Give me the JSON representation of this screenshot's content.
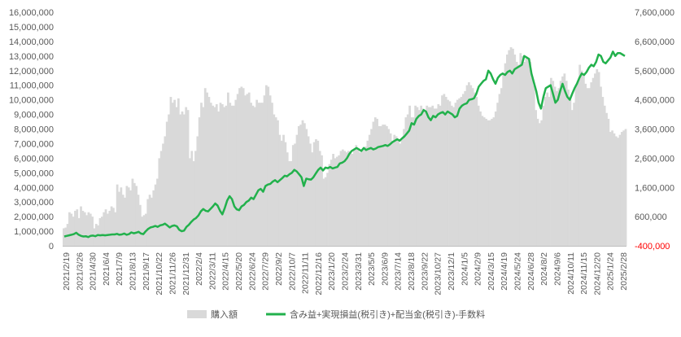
{
  "chart_data": {
    "type": "bar+line",
    "title": "",
    "xlabel": "",
    "ylabel": "",
    "legend_position": "bottom",
    "grid": false,
    "x_tick_labels": [
      "2021/2/19",
      "2021/3/26",
      "2021/4/30",
      "2021/6/4",
      "2021/7/9",
      "2021/8/13",
      "2021/9/17",
      "2021/10/22",
      "2021/11/26",
      "2021/12/31",
      "2022/2/4",
      "2022/3/11",
      "2022/4/15",
      "2022/5/20",
      "2022/6/24",
      "2022/7/29",
      "2022/9/2",
      "2022/10/7",
      "2022/11/11",
      "2022/12/16",
      "2023/1/20",
      "2023/2/24",
      "2023/3/31",
      "2023/5/5",
      "2023/6/9",
      "2023/7/14",
      "2023/8/18",
      "2023/9/22",
      "2023/10/27",
      "2023/12/1",
      "2024/1/5",
      "2024/2/9",
      "2024/3/15",
      "2024/4/19",
      "2024/5/24",
      "2024/6/28",
      "2024/8/2",
      "2024/9/6",
      "2024/10/11",
      "2024/11/15",
      "2024/12/20",
      "2025/1/24",
      "2025/2/28"
    ],
    "y_left": {
      "ylim": [
        0,
        16000000
      ],
      "ticks": [
        "0",
        "1,000,000",
        "2,000,000",
        "3,000,000",
        "4,000,000",
        "5,000,000",
        "6,000,000",
        "7,000,000",
        "8,000,000",
        "9,000,000",
        "10,000,000",
        "11,000,000",
        "12,000,000",
        "13,000,000",
        "14,000,000",
        "15,000,000",
        "16,000,000"
      ]
    },
    "y_right": {
      "ylim": [
        -400000,
        7600000
      ],
      "ticks": [
        "-400,000",
        "600,000",
        "1,600,000",
        "2,600,000",
        "3,600,000",
        "4,600,000",
        "5,600,000",
        "6,600,000",
        "7,600,000"
      ],
      "negative_color": "#ff0000"
    },
    "series": [
      {
        "name": "購入額",
        "type": "bar",
        "axis": "left",
        "color": "#d9d9d9",
        "values": [
          1200000,
          1250000,
          1500000,
          2300000,
          2200000,
          2000000,
          2400000,
          2500000,
          1900000,
          2700000,
          2400000,
          2300000,
          2100000,
          2300000,
          2200000,
          2000000,
          1200000,
          1500000,
          1400000,
          1900000,
          2000000,
          2300000,
          2500000,
          2200000,
          2400000,
          2700000,
          2600000,
          2300000,
          4200000,
          3700000,
          4000000,
          3500000,
          3300000,
          4100000,
          4000000,
          3800000,
          4600000,
          4300000,
          4100000,
          3500000,
          2800000,
          2000000,
          2100000,
          2200000,
          3200000,
          3500000,
          3300000,
          3800000,
          4200000,
          4600000,
          6000000,
          6500000,
          7000000,
          7500000,
          8500000,
          9000000,
          10200000,
          9800000,
          10000000,
          9500000,
          10100000,
          9000000,
          9200000,
          9000000,
          9500000,
          9300000,
          6000000,
          6500000,
          5800000,
          6500000,
          7500000,
          8800000,
          9800000,
          9500000,
          10800000,
          10500000,
          10200000,
          9800000,
          9600000,
          9500000,
          9700000,
          9200000,
          9800000,
          9700000,
          9500000,
          9600000,
          10500000,
          9800000,
          9600000,
          9600000,
          10000000,
          10400000,
          10800000,
          10900000,
          10800000,
          10300000,
          10400000,
          10500000,
          9800000,
          9600000,
          9500000,
          10000000,
          9800000,
          9800000,
          9800000,
          10300000,
          11000000,
          10900000,
          10300000,
          9800000,
          9000000,
          8800000,
          8600000,
          7600000,
          7200000,
          7600000,
          7100000,
          6400000,
          5800000,
          5800000,
          6900000,
          7000000,
          7600000,
          8200000,
          8300000,
          8600000,
          8400000,
          8000000,
          7500000,
          7000000,
          6400000,
          7100000,
          7300000,
          7200000,
          6500000,
          6200000,
          4600000,
          4700000,
          5000000,
          5600000,
          5900000,
          6300000,
          6000000,
          6100000,
          6200000,
          6500000,
          6600000,
          6500000,
          6400000,
          6500000,
          6400000,
          6300000,
          6600000,
          6900000,
          6600000,
          6400000,
          6500000,
          6600000,
          6800000,
          7200000,
          7600000,
          8000000,
          8500000,
          8800000,
          8700000,
          8200000,
          8200000,
          8300000,
          8300000,
          8200000,
          8000000,
          7700000,
          7200000,
          7600000,
          7500000,
          7200000,
          7000000,
          7400000,
          8000000,
          8800000,
          9000000,
          9600000,
          8800000,
          8800000,
          9600000,
          9500000,
          9300000,
          9600000,
          9400000,
          9300000,
          9600000,
          9500000,
          9500000,
          9600000,
          9400000,
          9400000,
          9700000,
          9600000,
          10300000,
          10400000,
          10200000,
          10000000,
          9900000,
          9600000,
          9500000,
          9800000,
          10000000,
          10100000,
          10200000,
          10400000,
          10600000,
          11000000,
          11200000,
          11000000,
          10800000,
          10500000,
          10200000,
          9600000,
          9200000,
          8900000,
          8800000,
          8700000,
          8600000,
          8600000,
          8700000,
          8800000,
          9200000,
          9800000,
          10400000,
          10800000,
          11800000,
          12500000,
          13100000,
          13400000,
          13600000,
          13500000,
          13100000,
          12600000,
          12400000,
          13200000,
          13000000,
          12600000,
          12900000,
          12800000,
          12600000,
          11500000,
          11000000,
          9300000,
          8700000,
          8400000,
          8600000,
          9600000,
          10200000,
          10500000,
          10200000,
          11500000,
          11300000,
          10900000,
          10600000,
          10800000,
          11300000,
          11600000,
          11800000,
          11300000,
          10700000,
          10000000,
          9300000,
          9800000,
          11000000,
          11300000,
          12400000,
          12000000,
          11800000,
          11100000,
          10800000,
          10800000,
          11200000,
          11500000,
          11800000,
          12100000,
          11900000,
          10900000,
          10200000,
          9600000,
          9100000,
          8700000,
          7800000,
          7900000,
          7700000,
          7500000,
          7400000,
          7600000,
          7800000,
          7900000,
          8000000
        ]
      },
      {
        "name": "含み益+実現損益(税引き)+配当金(税引き)-手数料",
        "type": "line",
        "axis": "right",
        "color": "#22b14c",
        "values": [
          -80000,
          -60000,
          -40000,
          -20000,
          0,
          50000,
          -20000,
          -60000,
          -80000,
          -70000,
          -100000,
          -60000,
          -50000,
          -70000,
          -30000,
          -40000,
          -30000,
          -40000,
          -30000,
          -20000,
          -10000,
          -10000,
          10000,
          -20000,
          -10000,
          20000,
          -20000,
          0,
          60000,
          30000,
          50000,
          80000,
          20000,
          0,
          100000,
          180000,
          230000,
          250000,
          280000,
          250000,
          300000,
          320000,
          360000,
          300000,
          230000,
          280000,
          300000,
          270000,
          150000,
          100000,
          120000,
          250000,
          320000,
          420000,
          500000,
          550000,
          640000,
          780000,
          860000,
          800000,
          780000,
          860000,
          950000,
          1050000,
          980000,
          800000,
          680000,
          900000,
          1150000,
          1300000,
          1200000,
          950000,
          850000,
          820000,
          950000,
          1000000,
          1100000,
          1150000,
          1250000,
          1200000,
          1350000,
          1500000,
          1550000,
          1450000,
          1650000,
          1700000,
          1720000,
          1800000,
          1850000,
          1780000,
          1850000,
          1920000,
          2000000,
          1980000,
          2050000,
          2100000,
          2200000,
          2150000,
          2050000,
          1950000,
          1650000,
          1900000,
          1880000,
          1870000,
          1950000,
          2080000,
          2200000,
          2280000,
          2180000,
          2280000,
          2260000,
          2300000,
          2250000,
          2280000,
          2300000,
          2420000,
          2450000,
          2500000,
          2600000,
          2750000,
          2850000,
          2900000,
          2950000,
          2900000,
          2850000,
          2950000,
          2880000,
          2920000,
          2950000,
          2900000,
          2930000,
          2980000,
          3000000,
          3020000,
          3050000,
          3020000,
          3080000,
          3150000,
          3200000,
          3250000,
          3200000,
          3280000,
          3350000,
          3450000,
          3550000,
          3800000,
          3750000,
          3950000,
          4050000,
          4100000,
          4250000,
          4200000,
          4000000,
          3900000,
          4050000,
          4000000,
          4100000,
          4150000,
          4180000,
          4100000,
          4200000,
          4150000,
          4100000,
          4000000,
          4050000,
          4300000,
          4400000,
          4450000,
          4480000,
          4600000,
          4620000,
          4650000,
          4800000,
          5050000,
          5150000,
          5250000,
          5300000,
          5600000,
          5500000,
          5300000,
          5150000,
          5350000,
          5450000,
          5500000,
          5450000,
          5550000,
          5600000,
          5500000,
          5650000,
          5700000,
          5750000,
          5800000,
          6100000,
          6050000,
          6000000,
          5500000,
          5200000,
          4900000,
          4500000,
          4300000,
          4700000,
          5000000,
          5050000,
          5100000,
          4800000,
          4500000,
          4600000,
          4900000,
          5150000,
          4900000,
          4700000,
          4600000,
          4800000,
          5000000,
          5150000,
          5350000,
          5500000,
          5450000,
          5550000,
          5700000,
          5800000,
          5750000,
          5900000,
          6150000,
          6100000,
          5900000,
          5850000,
          5950000,
          6050000,
          6250000,
          6100000,
          6200000,
          6200000,
          6150000,
          6100000
        ]
      }
    ]
  }
}
